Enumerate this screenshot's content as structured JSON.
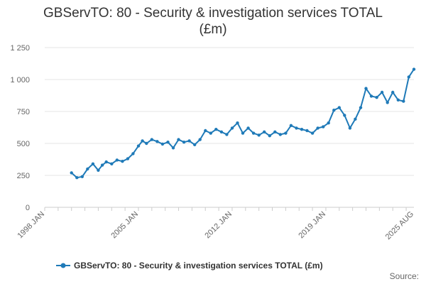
{
  "chart_data": {
    "type": "line",
    "title_line1": "GBServTO: 80 - Security & investigation services TOTAL",
    "title_line2": "(£m)",
    "xlabel": "",
    "ylabel": "",
    "ylim": [
      0,
      1250
    ],
    "yticks": [
      0,
      250,
      500,
      750,
      1000,
      1250
    ],
    "ytick_labels": [
      "0",
      "250",
      "500",
      "750",
      "1 000",
      "1 250"
    ],
    "xlim": [
      1998.0,
      2025.58
    ],
    "xticks": [
      1998.0,
      2005.0,
      2012.0,
      2019.0,
      2025.58
    ],
    "xtick_labels": [
      "1998 JAN",
      "2005 JAN",
      "2012 JAN",
      "2019 JAN",
      "2025 AUG"
    ],
    "color": "#1f7ab8",
    "series": [
      {
        "name": "GBServTO: 80 - Security & investigation services TOTAL (£m)",
        "x": [
          2000.0,
          2000.4,
          2000.8,
          2001.2,
          2001.6,
          2002.0,
          2002.3,
          2002.6,
          2003.0,
          2003.4,
          2003.8,
          2004.2,
          2004.6,
          2005.0,
          2005.3,
          2005.6,
          2006.0,
          2006.4,
          2006.8,
          2007.2,
          2007.6,
          2008.0,
          2008.4,
          2008.8,
          2009.2,
          2009.6,
          2010.0,
          2010.4,
          2010.8,
          2011.2,
          2011.6,
          2012.0,
          2012.4,
          2012.8,
          2013.2,
          2013.6,
          2014.0,
          2014.4,
          2014.8,
          2015.2,
          2015.6,
          2016.0,
          2016.4,
          2016.8,
          2017.2,
          2017.6,
          2018.0,
          2018.4,
          2018.8,
          2019.2,
          2019.6,
          2020.0,
          2020.4,
          2020.8,
          2021.2,
          2021.6,
          2022.0,
          2022.4,
          2022.8,
          2023.2,
          2023.6,
          2024.0,
          2024.4,
          2024.8,
          2025.2,
          2025.58
        ],
        "values": [
          270,
          232,
          240,
          300,
          340,
          290,
          330,
          355,
          340,
          370,
          360,
          380,
          420,
          480,
          520,
          500,
          530,
          515,
          495,
          510,
          465,
          530,
          510,
          520,
          490,
          530,
          600,
          580,
          610,
          590,
          570,
          620,
          660,
          580,
          620,
          580,
          565,
          590,
          560,
          590,
          570,
          580,
          640,
          620,
          610,
          600,
          580,
          620,
          630,
          660,
          760,
          780,
          720,
          620,
          690,
          780,
          930,
          870,
          860,
          900,
          820,
          900,
          840,
          830,
          1020,
          1080
        ]
      }
    ]
  },
  "legend": {
    "label": "GBServTO: 80 - Security & investigation services TOTAL (£m)"
  },
  "footer": {
    "source_label": "Source:"
  }
}
